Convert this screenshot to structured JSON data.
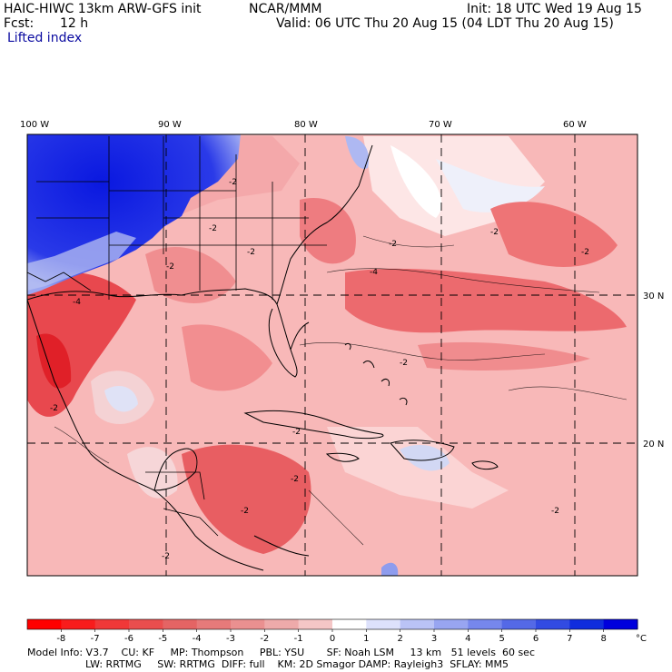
{
  "header": {
    "model_title": "HAIC-HIWC 13km ARW-GFS init",
    "org": "NCAR/MMM",
    "init": "Init: 18 UTC Wed 19 Aug 15",
    "fcst_label": "Fcst:",
    "fcst_value": "12 h",
    "valid": "Valid: 06 UTC Thu 20 Aug 15 (04 LDT Thu 20 Aug 15)",
    "field": "Lifted index"
  },
  "map": {
    "longitude_labels": [
      "100 W",
      "90 W",
      "80 W",
      "70 W",
      "60 W"
    ],
    "latitude_labels": [
      "30 N",
      "20 N"
    ],
    "contour_labels": [
      "-2",
      "-2",
      "-2",
      "-2",
      "-2",
      "-2",
      "-4",
      "-4",
      "-2",
      "-2",
      "-2",
      "-2",
      "-2",
      "-2",
      "-2",
      "-2"
    ],
    "colors": {
      "strong_negative": "#e0202a",
      "moderate_negative": "#f06468",
      "weak_negative": "#f8a2a4",
      "near_zero": "#fde0e0",
      "positive_weak": "#c8d0f6",
      "positive_strong": "#1020e0"
    }
  },
  "colorbar": {
    "ticks": [
      "-8",
      "-7",
      "-6",
      "-5",
      "-4",
      "-3",
      "-2",
      "-1",
      "0",
      "1",
      "2",
      "3",
      "4",
      "5",
      "6",
      "7",
      "8"
    ],
    "unit": "°C",
    "colors": [
      "#ff0000",
      "#f81c1c",
      "#f03838",
      "#ea4e4e",
      "#e46464",
      "#e67a7a",
      "#ea9090",
      "#eeaaaa",
      "#f4c6c6",
      "#ffffff",
      "#dde1fb",
      "#bac3f6",
      "#98a5f1",
      "#7687ec",
      "#5469e7",
      "#324be2",
      "#102ddd",
      "#0000dd"
    ]
  },
  "footer": {
    "line1": "Model Info: V3.7    CU: KF     MP: Thompson     PBL: YSU       SF: Noah LSM     13 km   51 levels  60 sec",
    "line2": "LW: RRTMG     SW: RRTMG  DIFF: full    KM: 2D Smagor DAMP: Rayleigh3  SFLAY: MM5"
  }
}
